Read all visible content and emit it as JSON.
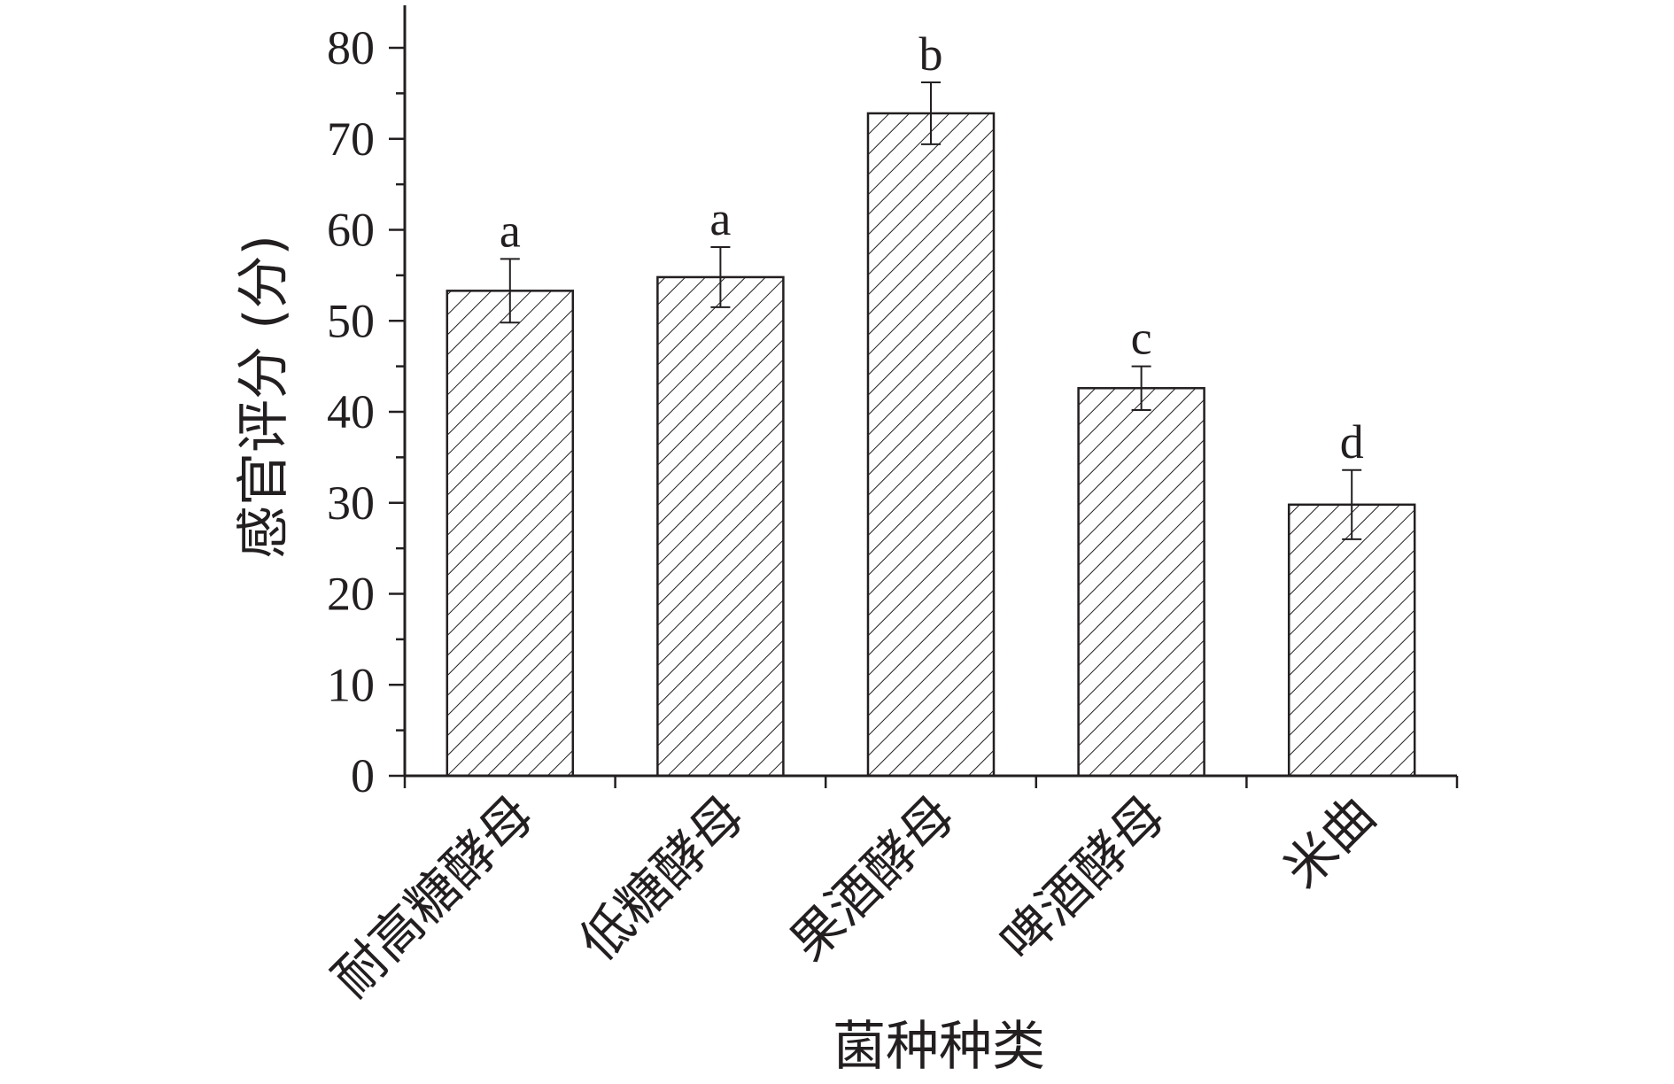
{
  "chart_data": {
    "type": "bar",
    "categories": [
      "耐高糖酵母",
      "低糖酵母",
      "果酒酵母",
      "啤酒酵母",
      "米曲"
    ],
    "values": [
      53.3,
      54.8,
      72.8,
      42.6,
      29.8
    ],
    "errors": [
      3.5,
      3.3,
      3.4,
      2.4,
      3.8
    ],
    "significance": [
      "a",
      "a",
      "b",
      "c",
      "d"
    ],
    "xlabel": "菌种种类",
    "ylabel": "感官评分 (分)",
    "ylim": [
      0,
      85
    ],
    "yticks": [
      0,
      10,
      20,
      30,
      40,
      50,
      60,
      70,
      80
    ],
    "fill_pattern": "diagonal-hatch",
    "bar_color": "#231f20",
    "grid": false
  }
}
